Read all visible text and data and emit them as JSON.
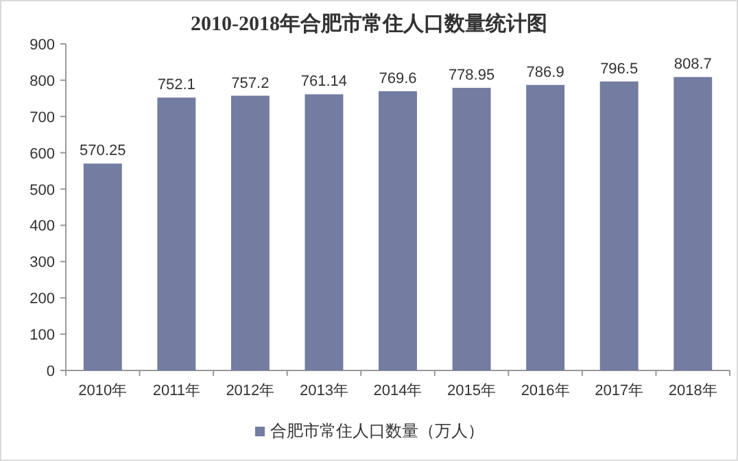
{
  "chart_data": {
    "type": "bar",
    "title": "2010-2018年合肥市常住人口数量统计图",
    "categories": [
      "2010年",
      "2011年",
      "2012年",
      "2013年",
      "2014年",
      "2015年",
      "2016年",
      "2017年",
      "2018年"
    ],
    "series": [
      {
        "name": "合肥市常住人口数量（万人）",
        "color": "#737ca1",
        "values": [
          570.25,
          752.1,
          757.2,
          761.14,
          769.6,
          778.95,
          786.9,
          796.5,
          808.7
        ]
      }
    ],
    "ylim": [
      0,
      900
    ],
    "yticks": [
      0,
      100,
      200,
      300,
      400,
      500,
      600,
      700,
      800,
      900
    ],
    "data_labels": true,
    "legend": "bottom",
    "grid": false
  }
}
